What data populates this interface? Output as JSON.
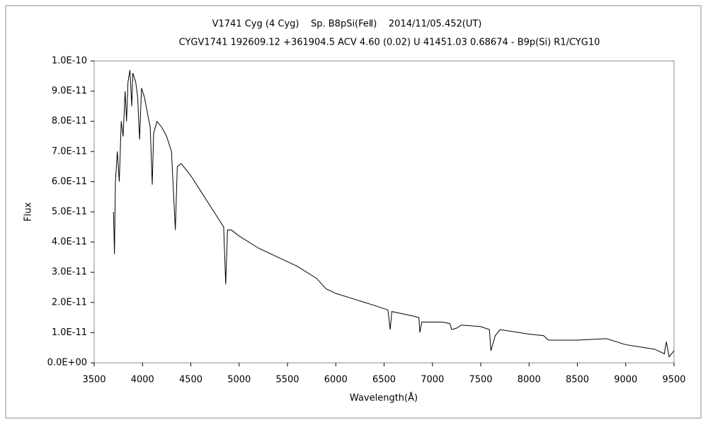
{
  "chart_data": {
    "type": "line",
    "title": "V1741 Cyg (4 Cyg)    Sp. B8pSi(FeⅡ)    2014/11/05.452(UT)",
    "subtitle": "CYGV1741 192609.12 +361904.5 ACV 4.60 (0.02) U 41451.03 0.68674 - B9p(Si) R1/CYG10",
    "x_label": "Wavelength(Å)",
    "y_label": "Flux",
    "x": [
      3700,
      3710,
      3720,
      3740,
      3760,
      3780,
      3800,
      3820,
      3835,
      3850,
      3870,
      3889,
      3900,
      3930,
      3950,
      3970,
      3990,
      4020,
      4050,
      4080,
      4101,
      4115,
      4150,
      4200,
      4250,
      4300,
      4340,
      4360,
      4400,
      4500,
      4600,
      4700,
      4800,
      4840,
      4861,
      4880,
      4920,
      5000,
      5200,
      5400,
      5600,
      5800,
      5900,
      6000,
      6200,
      6400,
      6540,
      6563,
      6580,
      6800,
      6860,
      6870,
      6890,
      7100,
      7180,
      7200,
      7250,
      7300,
      7500,
      7590,
      7605,
      7650,
      7700,
      8000,
      8150,
      8200,
      8500,
      8800,
      9000,
      9200,
      9300,
      9400,
      9420,
      9450,
      9500
    ],
    "series": [
      {
        "name": "V1741 Cyg",
        "color": "#000000",
        "values": [
          5e-11,
          3.6e-11,
          6e-11,
          7e-11,
          6e-11,
          8e-11,
          7.5e-11,
          9e-11,
          8e-11,
          9.3e-11,
          9.7e-11,
          8.5e-11,
          9.6e-11,
          9.3e-11,
          8.8e-11,
          7.4e-11,
          9.1e-11,
          8.8e-11,
          8.3e-11,
          7.8e-11,
          5.9e-11,
          7.6e-11,
          8e-11,
          7.8e-11,
          7.5e-11,
          7e-11,
          4.4e-11,
          6.5e-11,
          6.6e-11,
          6.2e-11,
          5.7e-11,
          5.2e-11,
          4.7e-11,
          4.5e-11,
          2.6e-11,
          4.4e-11,
          4.4e-11,
          4.2e-11,
          3.8e-11,
          3.5e-11,
          3.2e-11,
          2.8e-11,
          2.45e-11,
          2.3e-11,
          2.1e-11,
          1.9e-11,
          1.75e-11,
          1.1e-11,
          1.7e-11,
          1.55e-11,
          1.5e-11,
          1e-11,
          1.35e-11,
          1.35e-11,
          1.3e-11,
          1.1e-11,
          1.15e-11,
          1.25e-11,
          1.2e-11,
          1.1e-11,
          4e-12,
          9e-12,
          1.1e-11,
          9.5e-12,
          9e-12,
          7.5e-12,
          7.5e-12,
          8e-12,
          6e-12,
          5e-12,
          4.5e-12,
          3e-12,
          7e-12,
          2e-12,
          4e-12
        ]
      }
    ],
    "xlim": [
      3500,
      9500
    ],
    "xticks": [
      3500,
      4000,
      4500,
      5000,
      5500,
      6000,
      6500,
      7000,
      7500,
      8000,
      8500,
      9000,
      9500
    ],
    "ylim": [
      0,
      1e-10
    ],
    "yticks": [
      {
        "value": 0,
        "label": "0.0E+00"
      },
      {
        "value": 1e-11,
        "label": "1.0E-11"
      },
      {
        "value": 2e-11,
        "label": "2.0E-11"
      },
      {
        "value": 3e-11,
        "label": "3.0E-11"
      },
      {
        "value": 4e-11,
        "label": "4.0E-11"
      },
      {
        "value": 5e-11,
        "label": "5.0E-11"
      },
      {
        "value": 6e-11,
        "label": "6.0E-11"
      },
      {
        "value": 7e-11,
        "label": "7.0E-11"
      },
      {
        "value": 8e-11,
        "label": "8.0E-11"
      },
      {
        "value": 9e-11,
        "label": "9.0E-11"
      },
      {
        "value": 1e-10,
        "label": "1.0E-10"
      }
    ],
    "grid": false
  }
}
